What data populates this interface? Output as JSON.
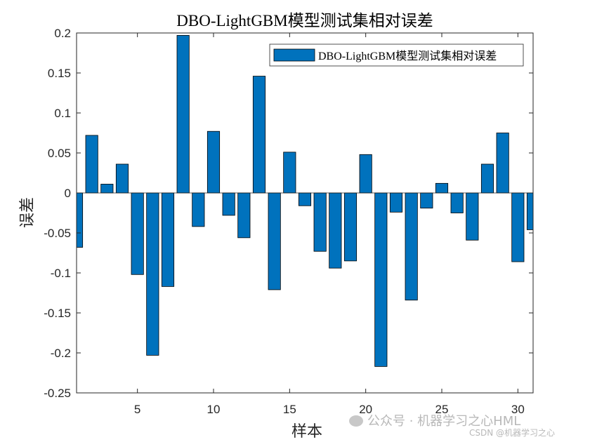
{
  "chart_data": {
    "type": "bar",
    "title": "DBO-LightGBM模型测试集相对误差",
    "xlabel": "样本",
    "ylabel": "误差",
    "legend": {
      "label": "DBO-LightGBM模型测试集相对误差",
      "position": "top-right"
    },
    "xlim": [
      1,
      31
    ],
    "ylim": [
      -0.25,
      0.2
    ],
    "xticks": [
      5,
      10,
      15,
      20,
      25,
      30
    ],
    "yticks": [
      -0.25,
      -0.2,
      -0.15,
      -0.1,
      -0.05,
      0,
      0.05,
      0.1,
      0.15,
      0.2
    ],
    "ytick_labels": [
      "-0.25",
      "-0.2",
      "-0.15",
      "-0.1",
      "-0.05",
      "0",
      "0.05",
      "0.1",
      "0.15",
      "0.2"
    ],
    "bar_color": "#0072BD",
    "x": [
      1,
      2,
      3,
      4,
      5,
      6,
      7,
      8,
      9,
      10,
      11,
      12,
      13,
      14,
      15,
      16,
      17,
      18,
      19,
      20,
      21,
      22,
      23,
      24,
      25,
      26,
      27,
      28,
      29,
      30,
      31
    ],
    "values": [
      -0.068,
      0.072,
      0.011,
      0.036,
      -0.102,
      -0.203,
      -0.117,
      0.197,
      -0.042,
      0.077,
      -0.028,
      -0.056,
      0.146,
      -0.121,
      0.051,
      -0.016,
      -0.073,
      -0.094,
      -0.085,
      0.048,
      -0.217,
      -0.024,
      -0.134,
      -0.019,
      0.012,
      -0.025,
      -0.059,
      0.036,
      0.075,
      -0.086,
      -0.046
    ]
  },
  "watermark": {
    "main": "公众号 · 机器学习之心HML",
    "sub": "CSDN @机器学习之心"
  }
}
